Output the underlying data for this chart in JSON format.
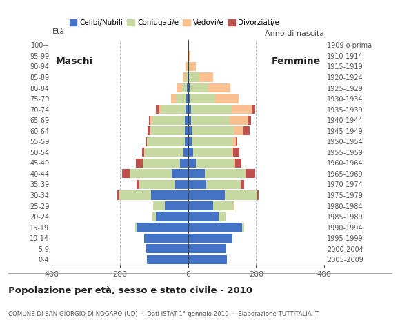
{
  "age_groups": [
    "0-4",
    "5-9",
    "10-14",
    "15-19",
    "20-24",
    "25-29",
    "30-34",
    "35-39",
    "40-44",
    "45-49",
    "50-54",
    "55-59",
    "60-64",
    "65-69",
    "70-74",
    "75-79",
    "80-84",
    "85-89",
    "90-94",
    "95-99",
    "100+"
  ],
  "birth_years": [
    "2005-2009",
    "2000-2004",
    "1995-1999",
    "1990-1994",
    "1985-1989",
    "1980-1984",
    "1975-1979",
    "1970-1974",
    "1965-1969",
    "1960-1964",
    "1955-1959",
    "1950-1954",
    "1945-1949",
    "1940-1944",
    "1935-1939",
    "1930-1934",
    "1925-1929",
    "1920-1924",
    "1915-1919",
    "1910-1914",
    "1909 o prima"
  ],
  "males": {
    "celibinubili": [
      120,
      122,
      130,
      152,
      95,
      68,
      108,
      38,
      48,
      24,
      14,
      10,
      10,
      10,
      8,
      5,
      3,
      2,
      0,
      0,
      0
    ],
    "coniugati": [
      0,
      0,
      0,
      4,
      10,
      34,
      95,
      105,
      124,
      110,
      114,
      110,
      100,
      95,
      70,
      30,
      15,
      5,
      2,
      0,
      0
    ],
    "vedovi": [
      0,
      0,
      0,
      0,
      0,
      0,
      0,
      0,
      0,
      0,
      0,
      0,
      0,
      5,
      8,
      15,
      15,
      8,
      5,
      2,
      0
    ],
    "divorziati": [
      0,
      0,
      0,
      0,
      0,
      0,
      5,
      8,
      22,
      20,
      8,
      5,
      8,
      5,
      8,
      0,
      0,
      0,
      0,
      0,
      0
    ]
  },
  "females": {
    "celibinubili": [
      115,
      112,
      130,
      160,
      90,
      74,
      108,
      54,
      50,
      24,
      14,
      10,
      10,
      8,
      8,
      5,
      5,
      3,
      0,
      0,
      0
    ],
    "coniugate": [
      0,
      0,
      0,
      5,
      20,
      60,
      95,
      100,
      120,
      110,
      114,
      120,
      124,
      114,
      120,
      74,
      55,
      30,
      5,
      2,
      0
    ],
    "vedove": [
      0,
      0,
      0,
      0,
      0,
      0,
      0,
      0,
      0,
      5,
      5,
      10,
      30,
      55,
      60,
      70,
      65,
      40,
      18,
      5,
      2
    ],
    "divorziate": [
      0,
      0,
      0,
      0,
      0,
      3,
      5,
      12,
      28,
      18,
      18,
      5,
      18,
      8,
      10,
      0,
      0,
      0,
      0,
      0,
      0
    ]
  },
  "colors": {
    "celibinubili": "#4472C4",
    "coniugati": "#C5D9A0",
    "vedovi": "#FAC090",
    "divorziati": "#C0504D"
  },
  "title": "Popolazione per età, sesso e stato civile - 2010",
  "subtitle": "COMUNE DI SAN GIORGIO DI NOGARO (UD)  ·  Dati ISTAT 1° gennaio 2010  ·  Elaborazione TUTTITALIA.IT",
  "xlabel_left": "Maschi",
  "xlabel_right": "Femmine",
  "ylabel_left": "Età",
  "ylabel_right": "Anno di nascita",
  "xlim": 400,
  "legend_labels": [
    "Celibi/Nubili",
    "Coniugati/e",
    "Vedovi/e",
    "Divorziati/e"
  ],
  "background_color": "#ffffff",
  "grid_color": "#bbbbbb"
}
